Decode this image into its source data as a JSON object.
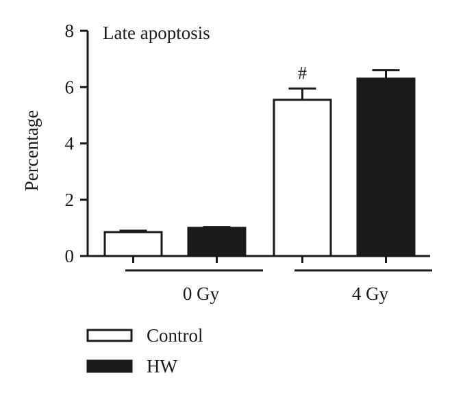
{
  "chart_data": {
    "type": "bar",
    "annotation": "Late apoptosis",
    "ylabel": "Percentage",
    "ylim": [
      0,
      8
    ],
    "yticks": [
      "0",
      "2",
      "4",
      "6",
      "8"
    ],
    "groups": [
      "0 Gy",
      "4 Gy"
    ],
    "series": [
      {
        "name": "Control",
        "values": [
          0.85,
          5.55
        ],
        "errors": [
          0.05,
          0.4
        ],
        "color": "#ffffff"
      },
      {
        "name": "HW",
        "values": [
          1.0,
          6.3
        ],
        "errors": [
          0.03,
          0.3
        ],
        "color": "#1a1a1a"
      }
    ],
    "significance": [
      {
        "series": 0,
        "group": 1,
        "label": "#"
      }
    ],
    "legend_position": "bottom-left"
  }
}
